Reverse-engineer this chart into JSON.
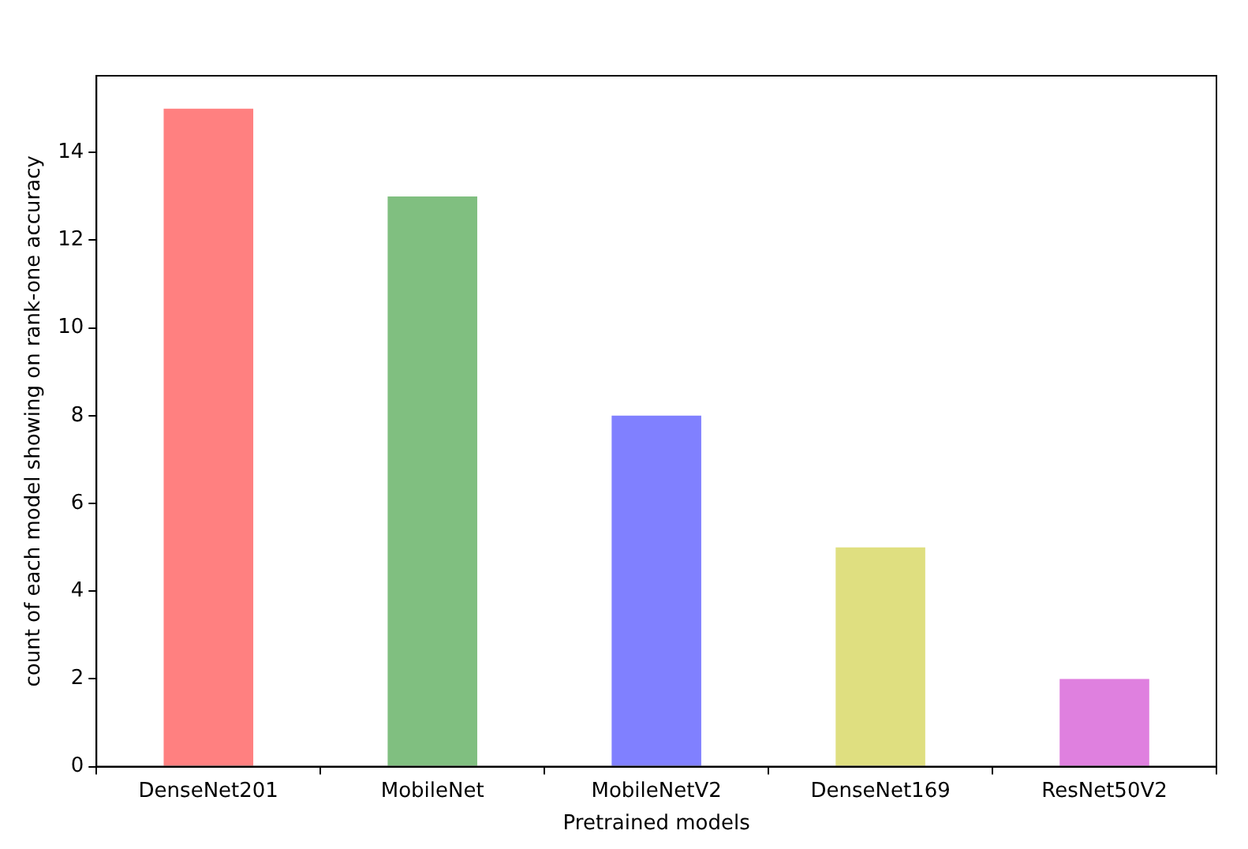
{
  "chart_data": {
    "type": "bar",
    "xlabel": "Pretrained models",
    "ylabel": "count of each model showing on rank-one accuracy",
    "categories": [
      "DenseNet201",
      "MobileNet",
      "MobileNetV2",
      "DenseNet169",
      "ResNet50V2"
    ],
    "values": [
      15,
      13,
      8,
      5,
      2
    ],
    "colors": [
      "#ff8080",
      "#80bf80",
      "#8080ff",
      "#dfdf80",
      "#df80df"
    ],
    "ylim": [
      0,
      15.75
    ],
    "yticks": [
      0,
      2,
      4,
      6,
      8,
      10,
      12,
      14
    ]
  }
}
